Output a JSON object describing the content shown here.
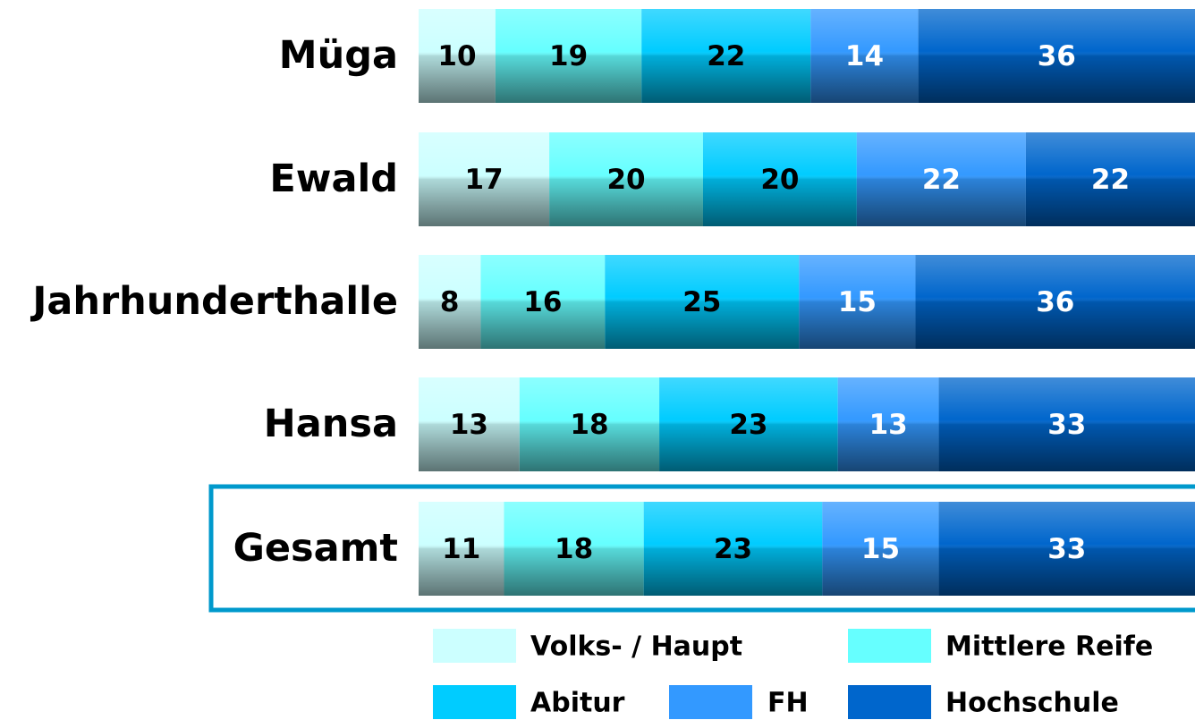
{
  "chart_data": {
    "type": "stacked_bar_horizontal",
    "categories": [
      "Müga",
      "Ewald",
      "Jahrhunderthalle",
      "Hansa",
      "Gesamt"
    ],
    "series": [
      {
        "name": "Volks- / Haupt",
        "color": "#ccffff",
        "label_color": "#000000",
        "values": [
          10,
          17,
          8,
          13,
          11
        ]
      },
      {
        "name": "Mittlere Reife",
        "color": "#66ffff",
        "label_color": "#000000",
        "values": [
          19,
          20,
          16,
          18,
          18
        ]
      },
      {
        "name": "Abitur",
        "color": "#00ccff",
        "label_color": "#000000",
        "values": [
          22,
          20,
          25,
          23,
          23
        ]
      },
      {
        "name": "FH",
        "color": "#3399ff",
        "label_color": "#ffffff",
        "values": [
          14,
          22,
          15,
          13,
          15
        ]
      },
      {
        "name": "Hochschule",
        "color": "#0066cc",
        "label_color": "#ffffff",
        "values": [
          36,
          22,
          36,
          33,
          33
        ]
      }
    ]
  }
}
